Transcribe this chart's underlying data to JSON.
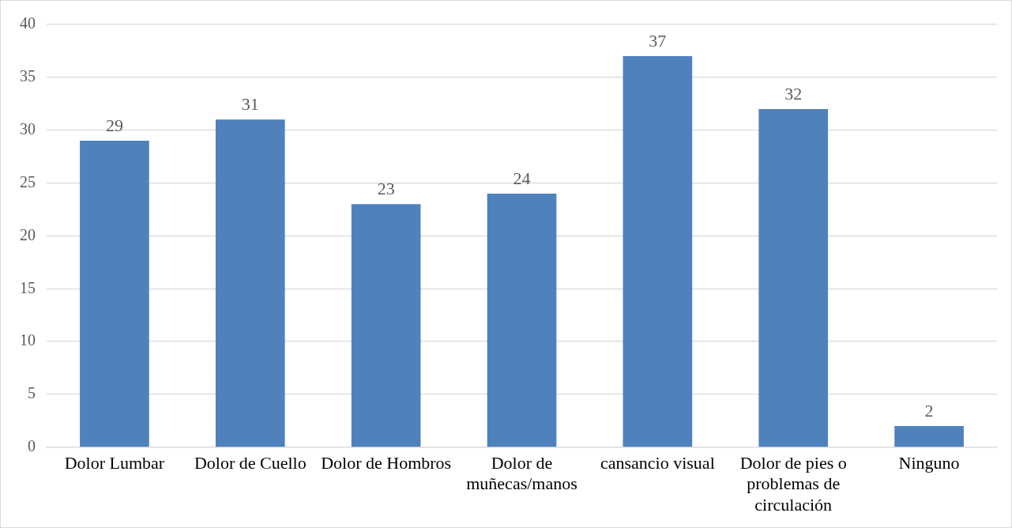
{
  "chart_data": {
    "type": "bar",
    "categories": [
      "Dolor Lumbar",
      "Dolor de Cuello",
      "Dolor de Hombros",
      "Dolor de muñecas/manos",
      "cansancio visual",
      "Dolor de pies o problemas de circulación",
      "Ninguno"
    ],
    "values": [
      29,
      31,
      23,
      24,
      37,
      32,
      2
    ],
    "color": "#4f81bd",
    "ylim": [
      0,
      40
    ],
    "yticks": [
      0,
      5,
      10,
      15,
      20,
      25,
      30,
      35,
      40
    ],
    "grid": "y",
    "data_labels": true,
    "legend": false
  }
}
